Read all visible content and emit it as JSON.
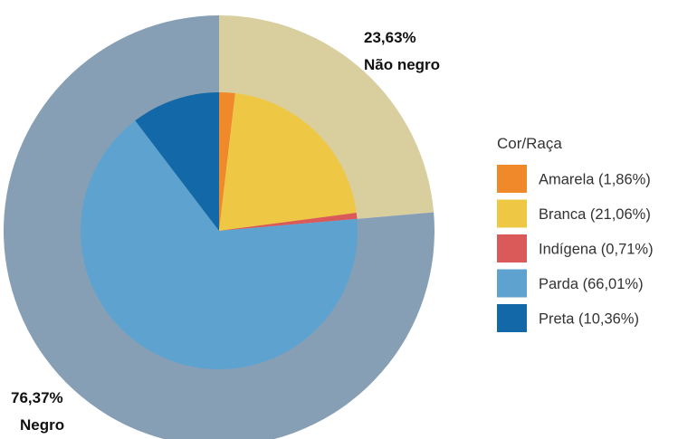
{
  "chart_data": {
    "type": "pie",
    "subtype": "nested-donut",
    "outer_ring": {
      "slices": [
        {
          "label": "Não negro",
          "percent_label": "23,63%",
          "value": 23.63,
          "color": "#D9CE9E"
        },
        {
          "label": "Negro",
          "percent_label": "76,37%",
          "value": 76.37,
          "color": "#879FB5"
        }
      ]
    },
    "inner_pie": {
      "slices": [
        {
          "name": "Amarela (1,86%)",
          "value": 1.86,
          "color": "#F0892A"
        },
        {
          "name": "Branca (21,06%)",
          "value": 21.06,
          "color": "#EEC845"
        },
        {
          "name": "Indígena (0,71%)",
          "value": 0.71,
          "color": "#D95A58"
        },
        {
          "name": "Parda (66,01%)",
          "value": 66.01,
          "color": "#5EA3D0"
        },
        {
          "name": "Preta (10,36%)",
          "value": 10.36,
          "color": "#1369A8"
        }
      ]
    },
    "legend": {
      "title": "Cor/Raça",
      "position": "right"
    }
  }
}
